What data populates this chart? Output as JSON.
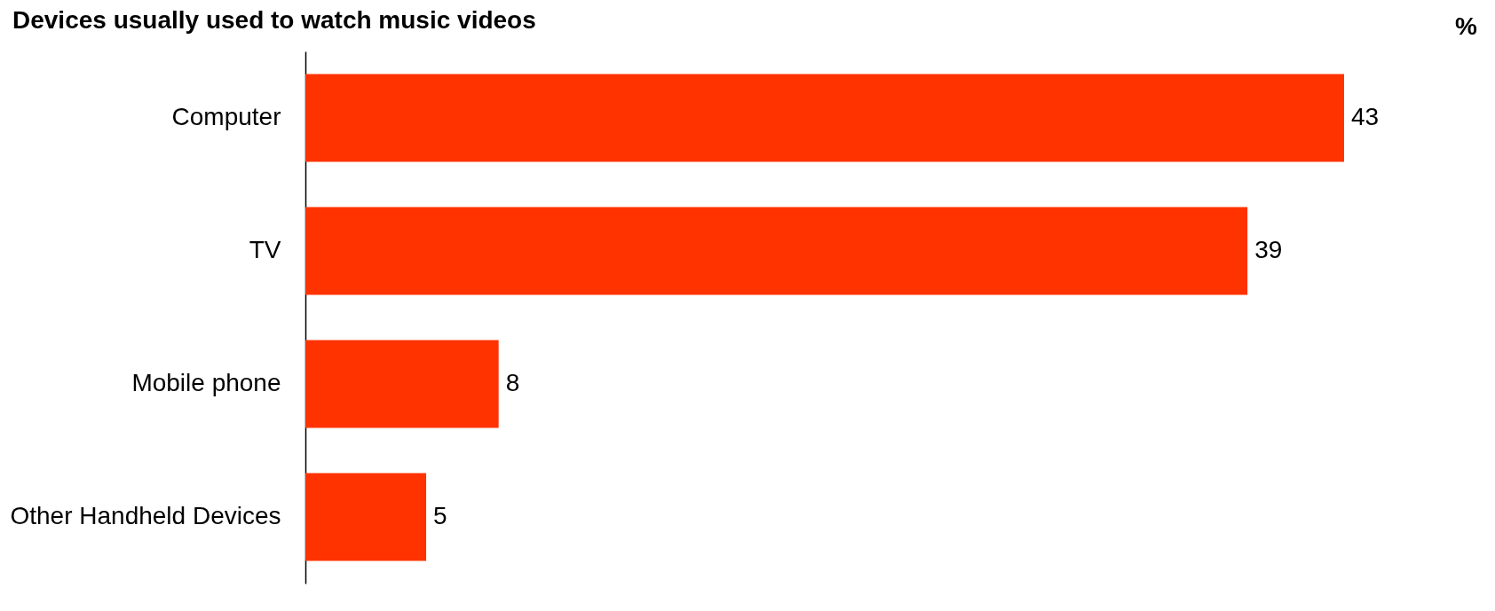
{
  "chart_data": {
    "type": "bar",
    "orientation": "horizontal",
    "title": "Devices usually used to watch music videos",
    "annotations": [
      "%"
    ],
    "categories": [
      "Computer",
      "TV",
      "Mobile phone",
      "Other Handheld Devices"
    ],
    "values": [
      43,
      39,
      8,
      5
    ],
    "color": "#ff3300",
    "data_labels": true
  }
}
